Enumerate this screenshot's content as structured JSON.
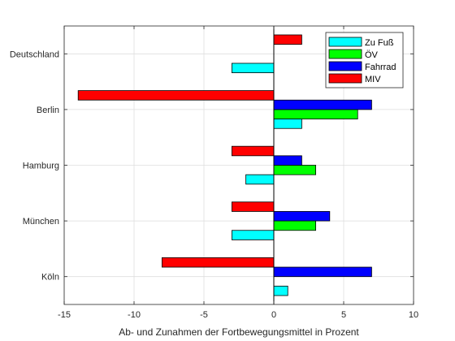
{
  "chart_data": {
    "type": "bar",
    "orientation": "horizontal",
    "categories": [
      "Deutschland",
      "Berlin",
      "Hamburg",
      "München",
      "Köln"
    ],
    "series": [
      {
        "name": "Zu Fuß",
        "color": "#00ffff",
        "values": [
          -3,
          2,
          -2,
          -3,
          1
        ]
      },
      {
        "name": "ÖV",
        "color": "#00ff00",
        "values": [
          0,
          6,
          3,
          3,
          0
        ]
      },
      {
        "name": "Fahrrad",
        "color": "#0000ff",
        "values": [
          0,
          7,
          2,
          4,
          7
        ]
      },
      {
        "name": "MIV",
        "color": "#ff0000",
        "values": [
          2,
          -14,
          -3,
          -3,
          -8
        ]
      }
    ],
    "xlim": [
      -15,
      10
    ],
    "xticks": [
      -15,
      -10,
      -5,
      0,
      5,
      10
    ],
    "xlabel": "Ab- und Zunahmen der Fortbewegungsmittel in Prozent",
    "ylabel": "",
    "title": "",
    "grid": true,
    "legend_position": "top-right"
  }
}
